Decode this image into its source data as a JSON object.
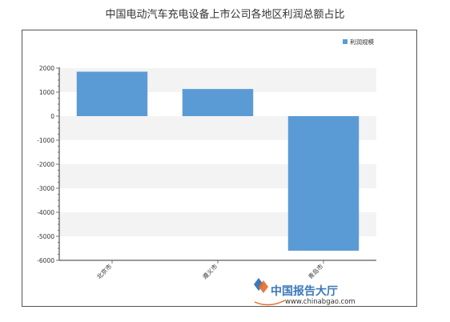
{
  "chart_data": {
    "type": "bar",
    "title": "中国电动汽车充电设备上市公司各地区利润总额占比",
    "categories": [
      "北京市",
      "遵义市",
      "青岛市"
    ],
    "series": [
      {
        "name": "利润规模",
        "values": [
          1850,
          1130,
          -5600
        ],
        "color": "#5b9bd5"
      }
    ],
    "ylim": [
      -6000,
      2000
    ],
    "yticks": [
      2000,
      1000,
      0,
      -1000,
      -2000,
      -3000,
      -4000,
      -5000,
      -6000
    ],
    "grid": "alternating horizontal bands",
    "legend": "top-right",
    "xlabel": "",
    "ylabel": ""
  },
  "watermark": {
    "name": "中国报告大厅",
    "url": "www.chinabgao.com",
    "accent_color": "#3a78b8"
  }
}
